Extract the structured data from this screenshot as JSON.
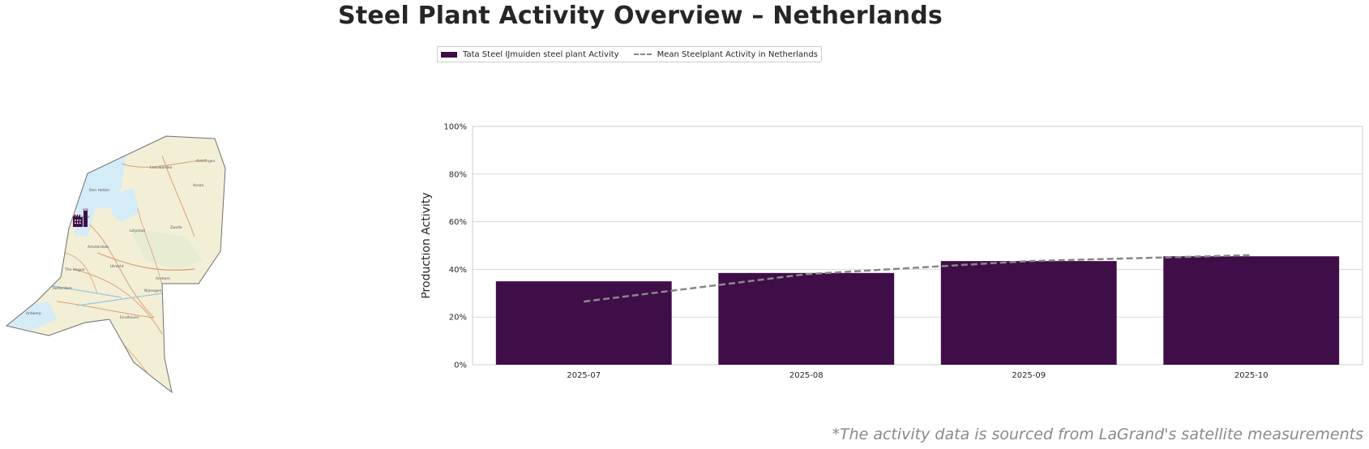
{
  "title": "Steel Plant Activity Overview – Netherlands",
  "legend": {
    "bar_label": "Tata Steel IJmuiden steel plant Activity",
    "line_label": "Mean Steelplant Activity in Netherlands"
  },
  "colors": {
    "bar": "#3f0e48",
    "line": "#888888",
    "grid": "#d9d9d9"
  },
  "map": {
    "icon": "steel-plant-factory-icon",
    "cities": [
      "Leeuwarden",
      "Groningen",
      "Assen",
      "Den Helder",
      "Alkmaar",
      "Zwolle",
      "Amsterdam",
      "Lelystad",
      "Utrecht",
      "The Hague",
      "Rotterdam",
      "Arnhem",
      "Nijmegen",
      "Eindhoven",
      "Antwerp"
    ]
  },
  "chart_data": {
    "type": "bar",
    "categories": [
      "2025-07",
      "2025-08",
      "2025-09",
      "2025-10"
    ],
    "series": [
      {
        "name": "Tata Steel IJmuiden steel plant Activity",
        "type": "bar",
        "values": [
          35,
          38.5,
          43.5,
          45.5
        ]
      },
      {
        "name": "Mean Steelplant Activity in Netherlands",
        "type": "line",
        "style": "dashed",
        "values": [
          26.5,
          38,
          43.5,
          46
        ]
      }
    ],
    "ylabel": "Production Activity",
    "xlabel": "",
    "ylim": [
      0,
      100
    ],
    "yticks": [
      "0%",
      "20%",
      "40%",
      "60%",
      "80%",
      "100%"
    ],
    "grid": true,
    "legend_position": "top-center"
  },
  "footnote": "*The activity data is sourced from LaGrand's satellite measurements"
}
